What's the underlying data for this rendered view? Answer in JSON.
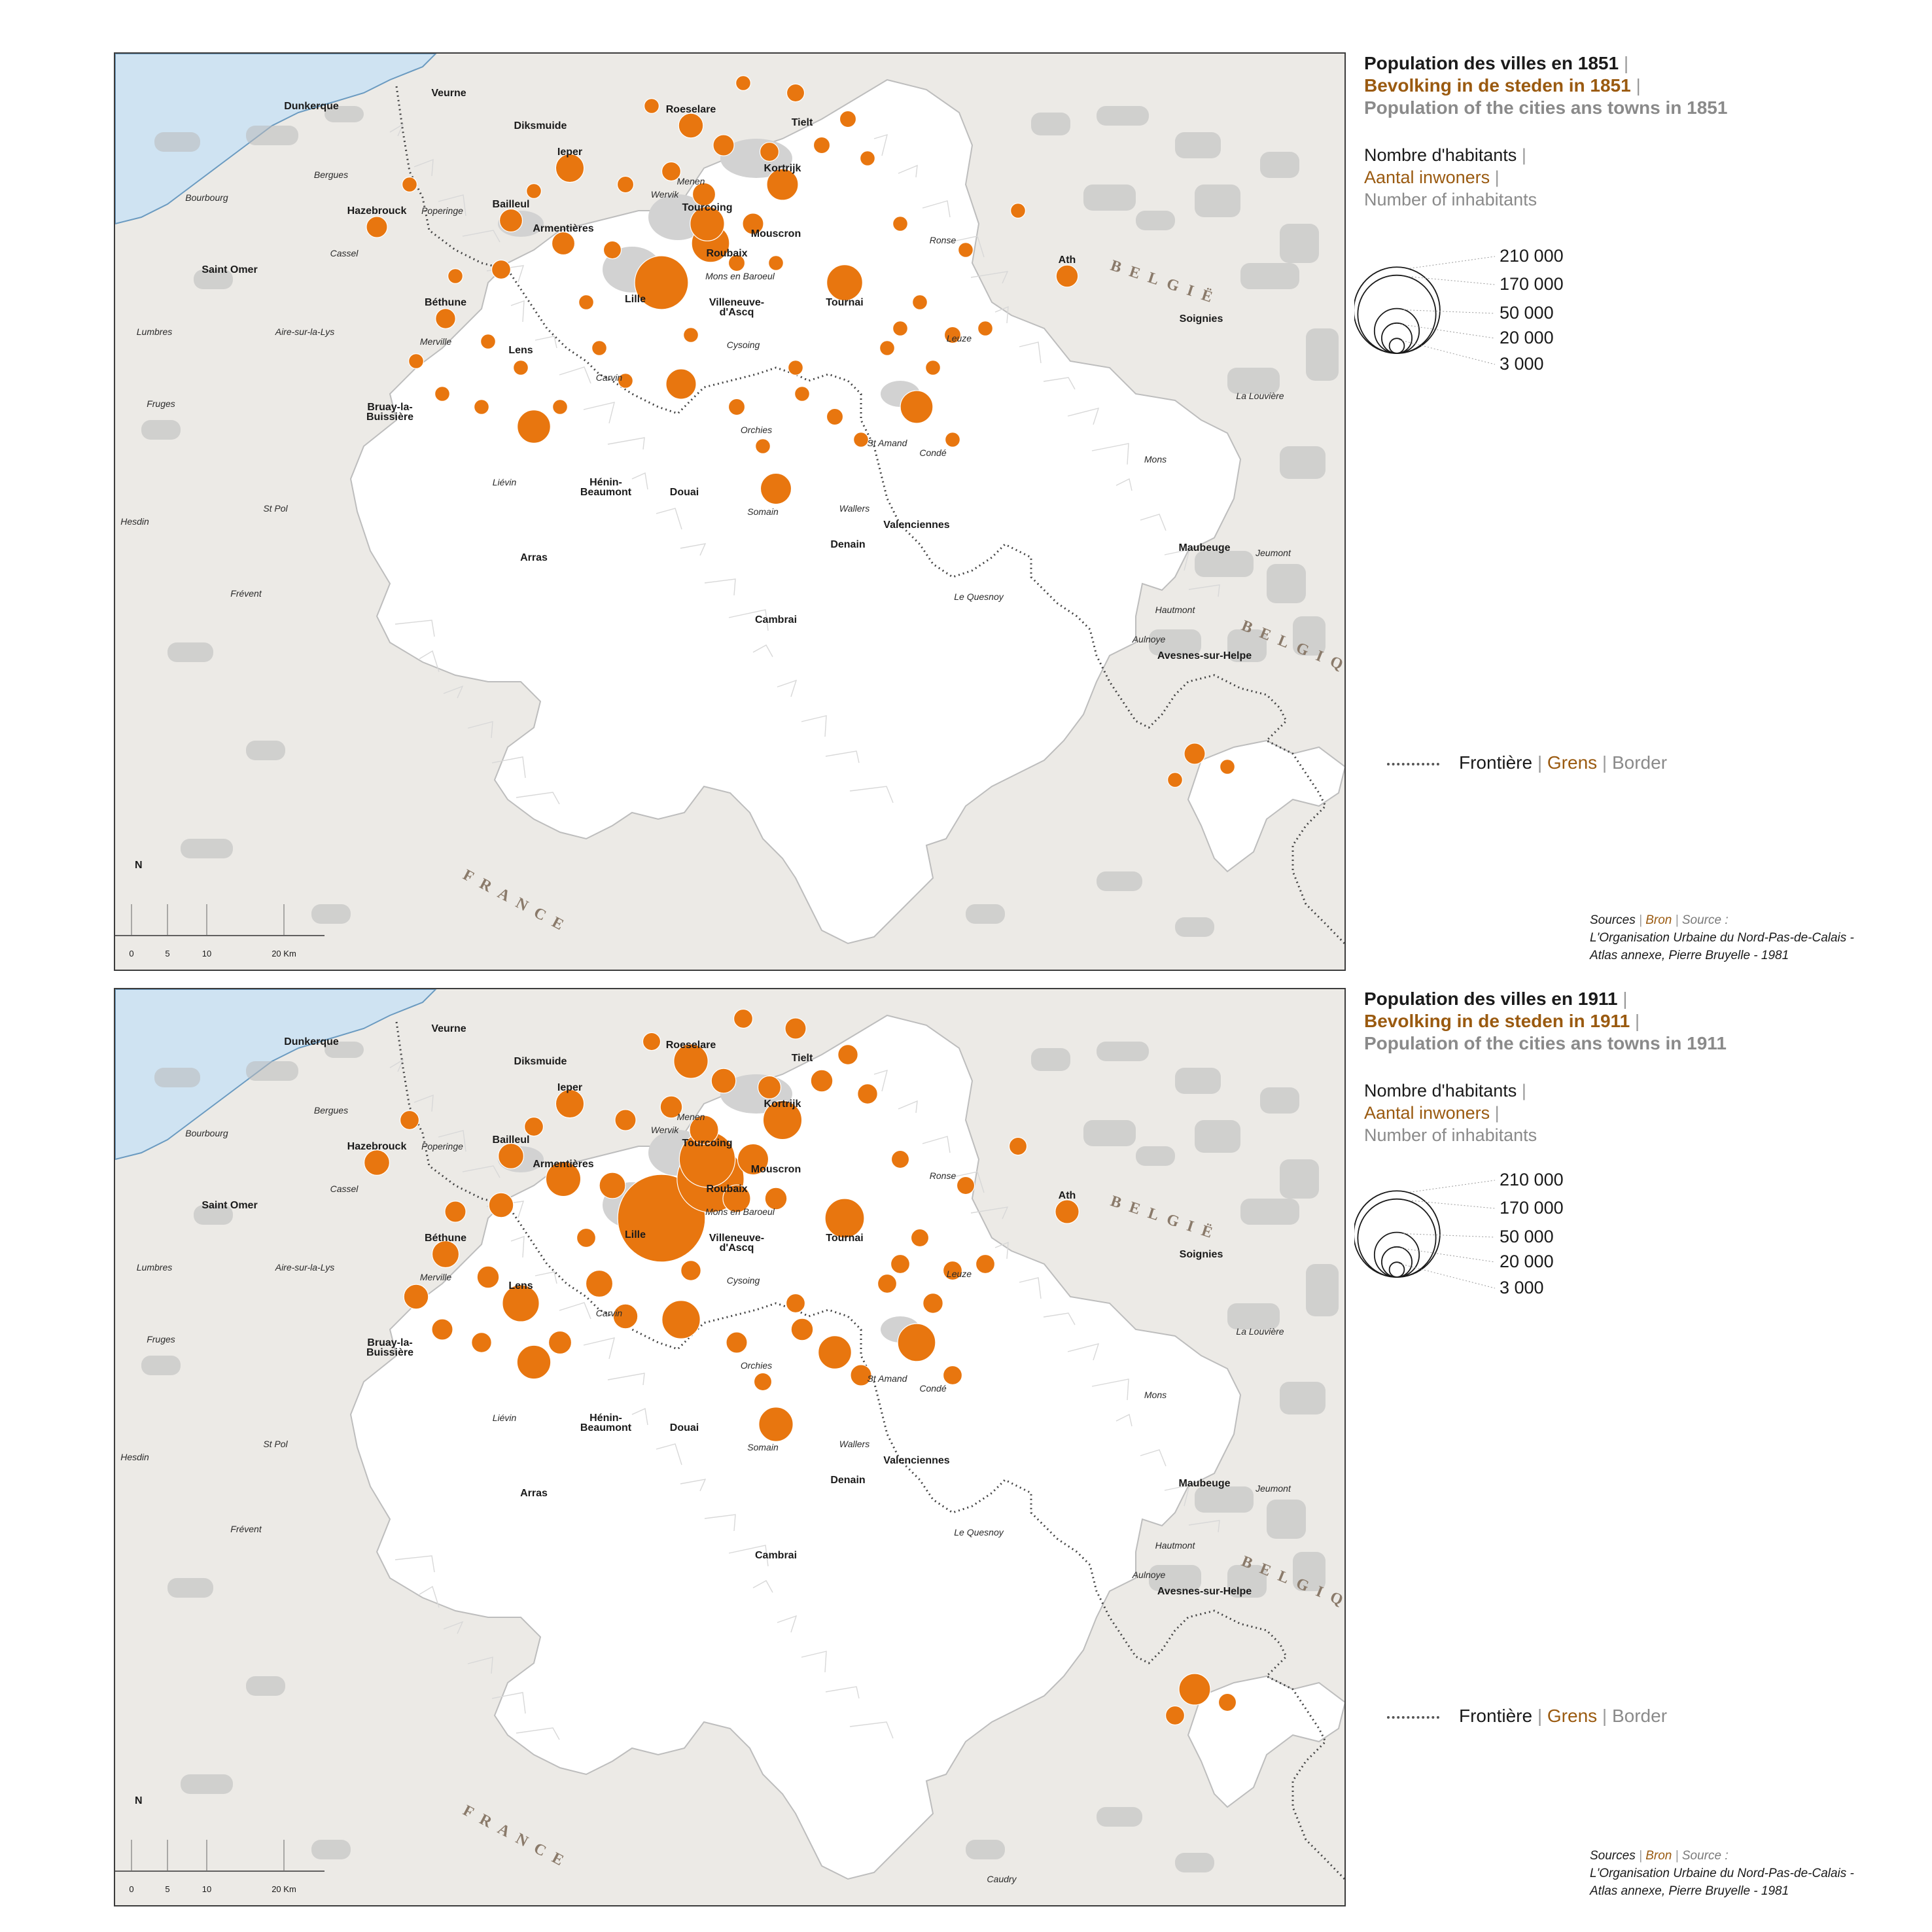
{
  "colors": {
    "accent_orange": "#e8760f",
    "dutch_brown": "#9a5a10",
    "english_grey": "#8a8a8a",
    "sea": "#cfe3f2",
    "study_area": "#ffffff",
    "outside": "#eceae6",
    "urban": "#b9b9b9"
  },
  "maps": [
    {
      "year": "1851",
      "title_fr": "Population des villes en 1851",
      "title_nl": "Bevolking in de steden in 1851",
      "title_en": "Population of the cities ans towns in 1851"
    },
    {
      "year": "1911",
      "title_fr": "Population des villes en 1911",
      "title_nl": "Bevolking in de steden in 1911",
      "title_en": "Population of the cities ans towns in 1911"
    }
  ],
  "legend": {
    "inhabitants_fr": "Nombre d'habitants",
    "inhabitants_nl": "Aantal inwoners",
    "inhabitants_en": "Number of inhabitants",
    "sizes": [
      "210 000",
      "170 000",
      "50 000",
      "20 000",
      "3 000"
    ],
    "size_values": [
      210000,
      170000,
      50000,
      20000,
      3000
    ],
    "border_fr": "Frontière",
    "border_nl": "Grens",
    "border_en": "Border",
    "separator": "|"
  },
  "sources": {
    "label_fr": "Sources",
    "label_nl": "Bron",
    "label_en": "Source :",
    "line1": "L'Organisation Urbaine du Nord-Pas-de-Calais -",
    "line2": "Atlas annexe, Pierre  Bruyelle - 1981"
  },
  "north_label": "N",
  "scale_labels": [
    "0",
    "5",
    "10",
    "20 Km"
  ],
  "country_labels": {
    "belgie": "BELGIË",
    "belgique": "BELGIQUE",
    "france": "FRANCE"
  },
  "places": {
    "dunkerque": "Dunkerque",
    "veurne": "Veurne",
    "diksmuide": "Diksmuide",
    "bergues": "Bergues",
    "bourbourg": "Bourbourg",
    "roeselare": "Roeselare",
    "tielt": "Tielt",
    "poperinge": "Poperinge",
    "ieper": "Ieper",
    "kortrijk": "Kortrijk",
    "menen": "Menen",
    "wervik": "Wervik",
    "cassel": "Cassel",
    "saint_omer": "Saint Omer",
    "hazebrouck": "Hazebrouck",
    "bailleul": "Bailleul",
    "tourcoing": "Tourcoing",
    "mouscron": "Mouscron",
    "ronse": "Ronse",
    "armentieres": "Armentières",
    "roubaix": "Roubaix",
    "lumbres": "Lumbres",
    "mons_en_baroeul": "Mons en Baroeul",
    "lille": "Lille",
    "aire": "Aire-sur-la-Lys",
    "merville": "Merville",
    "villeneuve": "Villeneuve-",
    "villeneuve2": "d'Ascq",
    "ath": "Ath",
    "soignies": "Soignies",
    "leuze": "Leuze",
    "tournai": "Tournai",
    "cysoing": "Cysoing",
    "bethune": "Béthune",
    "fruges": "Fruges",
    "carvin": "Carvin",
    "la_louviere": "La Louvière",
    "mons": "Mons",
    "bruay": "Bruay-la-",
    "bruay2": "Buissière",
    "orchies": "Orchies",
    "conde": "Condé",
    "lens": "Lens",
    "st_amand": "St Amand",
    "lievin": "Liévin",
    "henin": "Hénin-",
    "henin2": "Beaumont",
    "douai": "Douai",
    "wallers": "Wallers",
    "hesdin": "Hesdin",
    "st_pol": "St Pol",
    "somain": "Somain",
    "valenciennes": "Valenciennes",
    "denain": "Denain",
    "maubeuge": "Maubeuge",
    "jeumont": "Jeumont",
    "arras": "Arras",
    "frevent": "Frévent",
    "le_quesnoy": "Le Quesnoy",
    "hautmont": "Hautmont",
    "aulnoye": "Aulnoye",
    "cambrai": "Cambrai",
    "avesnes": "Avesnes-sur-Helpe",
    "caudry": "Caudry"
  }
}
